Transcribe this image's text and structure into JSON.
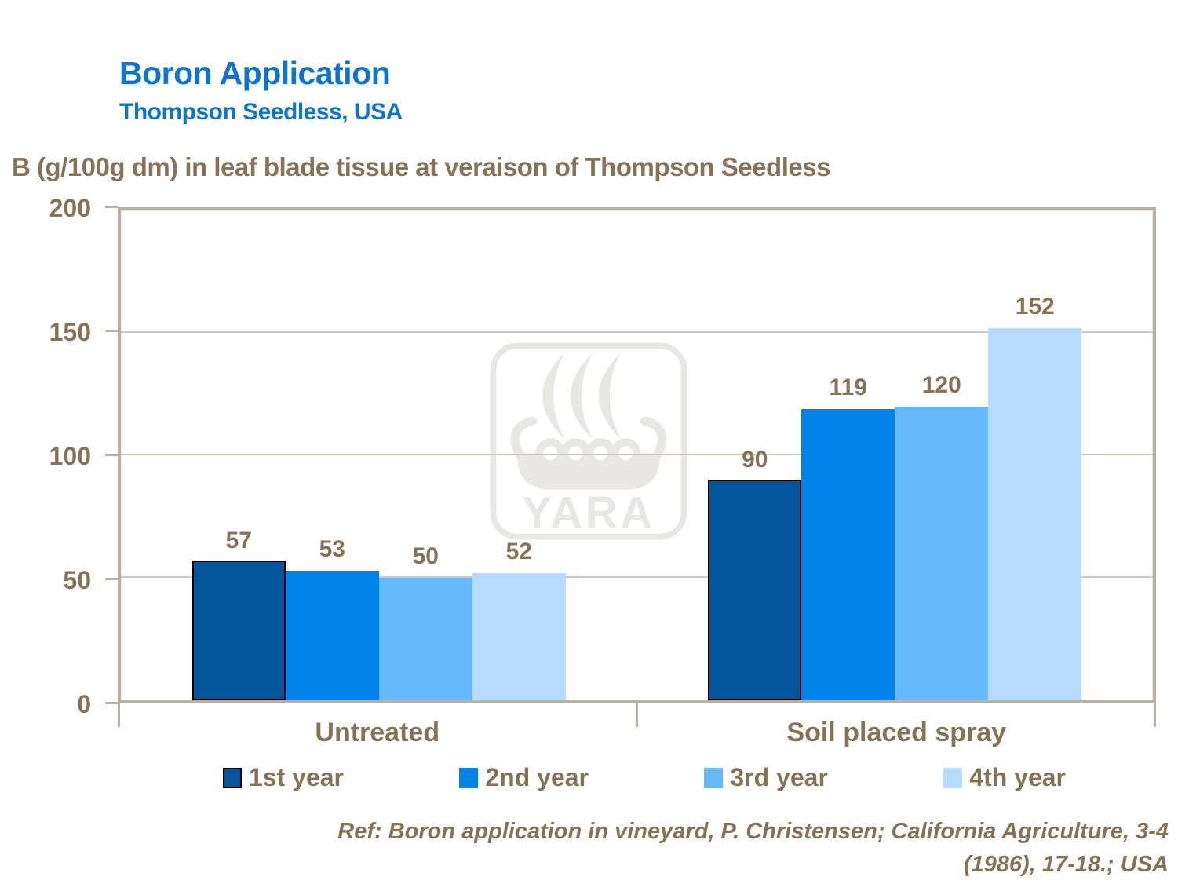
{
  "header": {
    "title": "Boron Application",
    "subtitle": "Thompson Seedless, USA"
  },
  "chart_heading": "B (g/100g dm) in leaf blade tissue at veraison of Thompson Seedless",
  "chart_data": {
    "type": "bar",
    "categories": [
      "Untreated",
      "Soil placed spray"
    ],
    "series": [
      {
        "name": "1st year",
        "color": "#03549B",
        "outlined": true,
        "values": [
          57,
          90
        ]
      },
      {
        "name": "2nd year",
        "color": "#0082E8",
        "outlined": false,
        "values": [
          53,
          119
        ]
      },
      {
        "name": "3rd year",
        "color": "#66BAFC",
        "outlined": false,
        "values": [
          50,
          120
        ]
      },
      {
        "name": "4th year",
        "color": "#B7DBFE",
        "outlined": false,
        "values": [
          52,
          152
        ]
      }
    ],
    "ylim": [
      0,
      200
    ],
    "yticks": [
      0,
      50,
      100,
      150,
      200
    ],
    "grid": true,
    "legend_position": "bottom",
    "title": "B (g/100g dm) in leaf blade tissue at veraison of Thompson Seedless",
    "xlabel": "",
    "ylabel": ""
  },
  "footer": {
    "ref_line1": "Ref: Boron application in vineyard, P. Christensen; California Agriculture, 3-4",
    "ref_line2": "(1986), 17-18.; USA"
  },
  "watermark": {
    "text": "YARA",
    "icon": "viking-ship-icon"
  },
  "colors": {
    "title_blue": "#0E74CE",
    "text_brown": "#867257",
    "axis_tan": "#B9B0A4",
    "gridline": "#CFC8BD",
    "watermark": "#E9E7E3"
  }
}
